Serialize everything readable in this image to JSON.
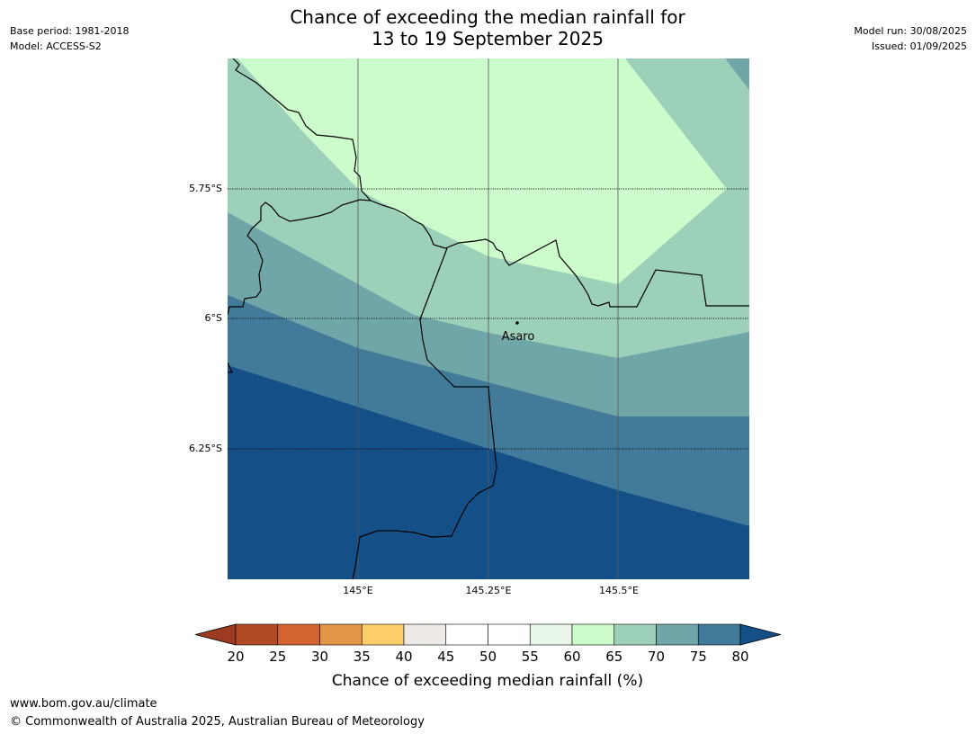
{
  "title": {
    "line1": "Chance of exceeding the median rainfall for",
    "line2": "13 to 19 September 2025"
  },
  "meta_left": {
    "base_period": "Base period: 1981-2018",
    "model": "Model: ACCESS-S2"
  },
  "meta_right": {
    "model_run": "Model run: 30/08/2025",
    "issued": "Issued: 01/09/2025"
  },
  "map": {
    "lat_labels": [
      "5.75°S",
      "6°S",
      "6.25°S"
    ],
    "lon_labels": [
      "145°E",
      "145.25°E",
      "145.5°E"
    ],
    "place": {
      "name": "Asaro"
    },
    "band_colors": {
      "60-65": "#ccfccc",
      "65-70": "#9dd0b9",
      "70-75": "#70a6a8",
      "75-80": "#427a99",
      "80+": "#144f88"
    }
  },
  "colorbar": {
    "label": "Chance of exceeding median rainfall (%)",
    "ticks": [
      "20",
      "25",
      "30",
      "35",
      "40",
      "45",
      "50",
      "55",
      "60",
      "65",
      "70",
      "75",
      "80"
    ],
    "under_color": "#9c3a22",
    "over_color": "#144f88",
    "colors": [
      "#b34a26",
      "#d2652f",
      "#e39548",
      "#fdcd6a",
      "#ede9e6",
      "#ffffff",
      "#ffffff",
      "#e8f7e8",
      "#ccfccc",
      "#9dd0b9",
      "#70a6a8",
      "#427a99"
    ]
  },
  "footer": {
    "url": "www.bom.gov.au/climate",
    "copyright": "© Commonwealth of Australia 2025, Australian Bureau of Meteorology"
  }
}
